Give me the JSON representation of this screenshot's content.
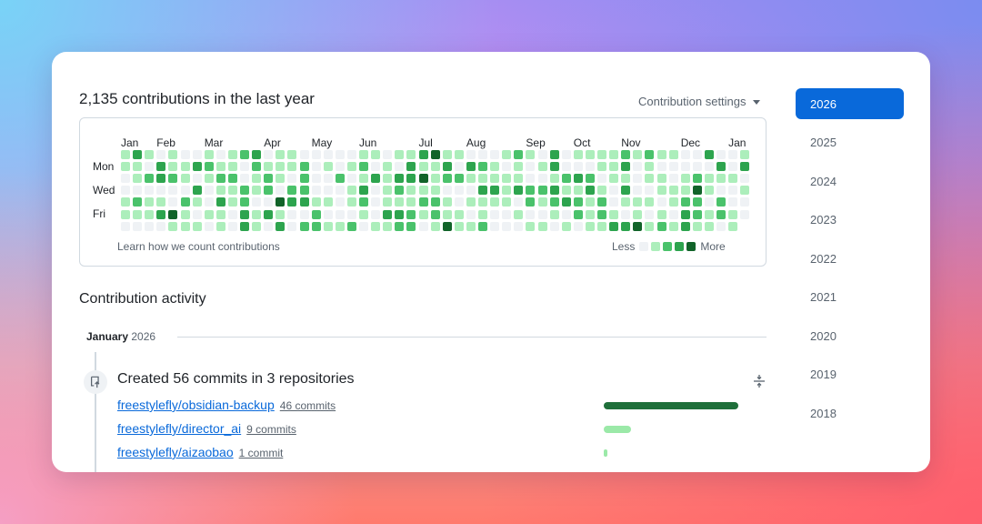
{
  "contributions": {
    "title": "2,135 contributions in the last year",
    "settings_label": "Contribution settings",
    "months": [
      "Jan",
      "Feb",
      "Mar",
      "Apr",
      "May",
      "Jun",
      "Jul",
      "Aug",
      "Sep",
      "Oct",
      "Nov",
      "Dec",
      "Jan"
    ],
    "month_week_index": [
      0,
      3,
      7,
      12,
      16,
      20,
      25,
      29,
      34,
      38,
      42,
      47,
      51
    ],
    "day_labels": [
      "Mon",
      "Wed",
      "Fri"
    ],
    "learn_link": "Learn how we count contributions",
    "legend_less": "Less",
    "legend_more": "More",
    "level_colors": [
      "#eff2f5",
      "#aceebb",
      "#4ac26b",
      "#2da44e",
      "#116329"
    ],
    "weeks_count": 53
  },
  "activity": {
    "title": "Contribution activity",
    "month_label": "January",
    "year_label": "2026",
    "commits_title": "Created 56 commits in 3 repositories",
    "repos": [
      {
        "name": "freestylefly/obsidian-backup",
        "count": "46 commits",
        "share": 1.0,
        "color": "#1f6f3a"
      },
      {
        "name": "freestylefly/director_ai",
        "count": "9 commits",
        "share": 0.2,
        "color": "#9be9a8"
      },
      {
        "name": "freestylefly/aizaobao",
        "count": "1 commit",
        "share": 0.03,
        "color": "#9be9a8"
      }
    ]
  },
  "years": [
    "2026",
    "2025",
    "2024",
    "2023",
    "2022",
    "2021",
    "2020",
    "2019",
    "2018"
  ],
  "selected_year": "2026"
}
